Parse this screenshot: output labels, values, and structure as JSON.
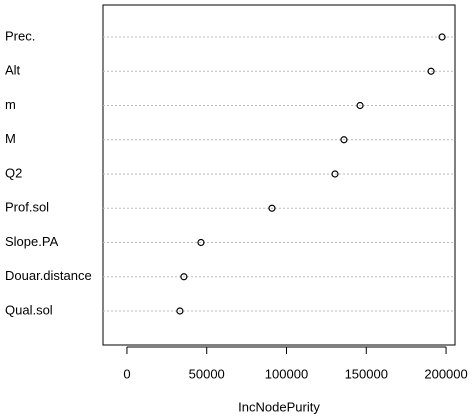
{
  "chart_data": {
    "type": "dotchart",
    "categories": [
      "Prec.",
      "Alt",
      "m",
      "M",
      "Q2",
      "Prof.sol",
      "Slope.PA",
      "Douar.distance",
      "Qual.sol"
    ],
    "values": [
      197500,
      190600,
      146100,
      136000,
      130400,
      90900,
      46400,
      35700,
      33200
    ],
    "xlabel": "IncNodePurity",
    "xlim": [
      -15000,
      205600
    ],
    "xticks": [
      0,
      50000,
      100000,
      150000,
      200000
    ],
    "grid": true,
    "color": "#000000"
  }
}
